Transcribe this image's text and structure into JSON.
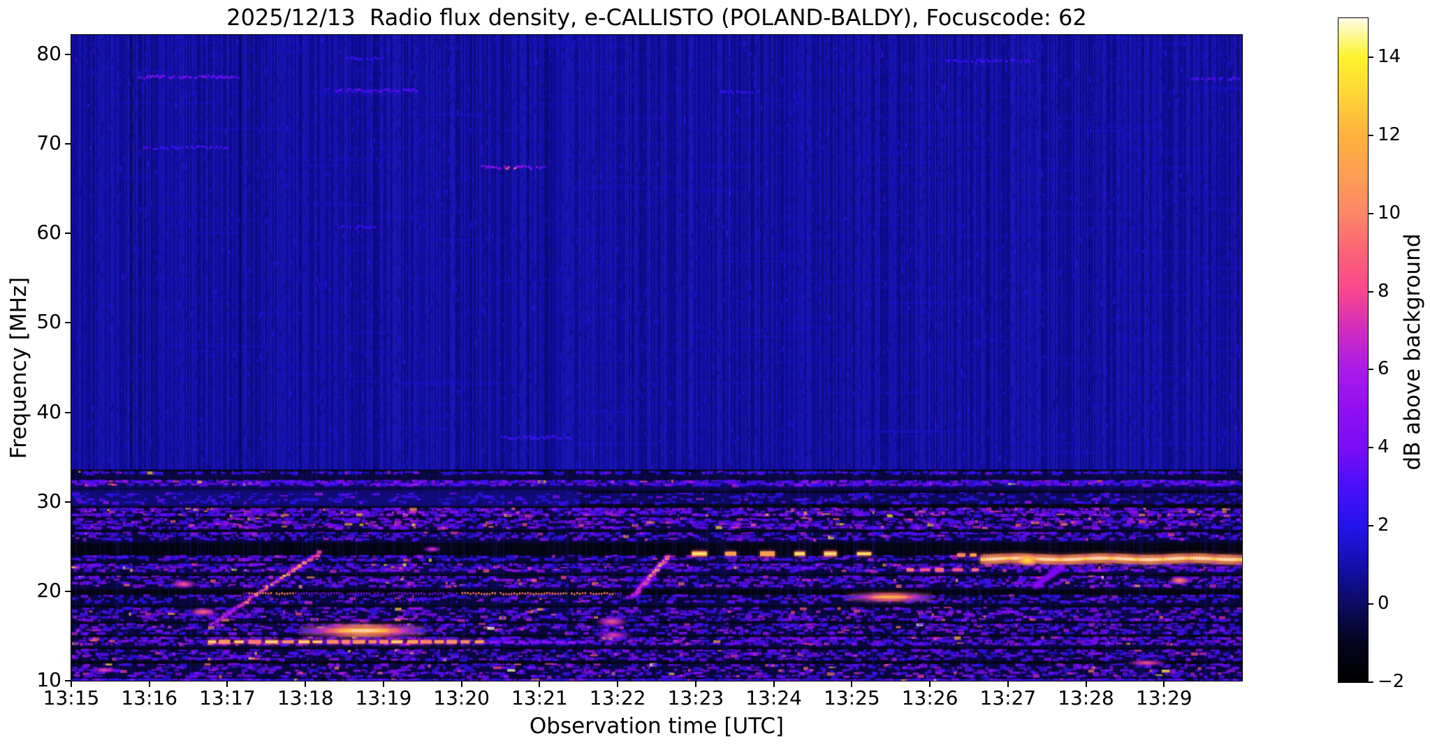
{
  "figure": {
    "background_color": "#ffffff",
    "date": "2025/12/13",
    "station": "POLAND-BALDY",
    "focuscode": "62"
  },
  "chart_data": {
    "type": "heatmap",
    "title": "2025/12/13  Radio flux density, e-CALLISTO (POLAND-BALDY), Focuscode: 62",
    "xlabel": "Observation time [UTC]",
    "ylabel": "Frequency [MHz]",
    "colorbar_label": "dB above background",
    "x_ticks": [
      "13:15",
      "13:16",
      "13:17",
      "13:18",
      "13:19",
      "13:20",
      "13:21",
      "13:22",
      "13:23",
      "13:24",
      "13:25",
      "13:26",
      "13:27",
      "13:28",
      "13:29"
    ],
    "x_range_minutes": [
      0,
      15
    ],
    "y_ticks": [
      80,
      70,
      60,
      50,
      40,
      30,
      20,
      10
    ],
    "y_range": [
      10,
      82.19
    ],
    "colorbar_ticks": [
      14,
      12,
      10,
      8,
      6,
      4,
      2,
      0,
      -2
    ],
    "colorbar_tick_labels": [
      "14",
      "12",
      "10",
      "8",
      "6",
      "4",
      "2",
      "0",
      "−2"
    ],
    "colorbar_range": [
      -2,
      15
    ],
    "grid": false,
    "legend": "colorbar-right",
    "background_value": 0.9,
    "colormap_stops": [
      [
        -2,
        "#000000"
      ],
      [
        -1,
        "#04041e"
      ],
      [
        0,
        "#0c0c63"
      ],
      [
        1,
        "#140fae"
      ],
      [
        2,
        "#2414ec"
      ],
      [
        3,
        "#4a0ffa"
      ],
      [
        4,
        "#7a0df5"
      ],
      [
        5,
        "#920ff2"
      ],
      [
        6,
        "#a81ce8"
      ],
      [
        7,
        "#d02cc0"
      ],
      [
        8,
        "#f9468f"
      ],
      [
        9,
        "#fb6377"
      ],
      [
        10,
        "#fc8767"
      ],
      [
        11,
        "#fe9f53"
      ],
      [
        12,
        "#ffb23f"
      ],
      [
        13,
        "#ffd437"
      ],
      [
        14,
        "#fdf32b"
      ],
      [
        15,
        "#fffde8"
      ]
    ],
    "dark_columns": [
      0.76,
      1.05,
      2.16,
      6.1
    ],
    "haze": [
      {
        "f0": 31.3,
        "f1": 29.5,
        "t0": 0,
        "t1": 6.5,
        "val": 1.6,
        "alpha": 0.45
      },
      {
        "f0": 31.0,
        "f1": 29.8,
        "t0": 6.5,
        "t1": 15,
        "val": 1.4,
        "alpha": 0.25
      },
      {
        "f0": 33.0,
        "f1": 31.2,
        "t0": 0,
        "t1": 15,
        "val": 1.2,
        "alpha": 0.25
      }
    ],
    "bands": [
      {
        "f0": 33.4,
        "f1": 32.9,
        "density": 0.2,
        "val": 1.6,
        "spread": 1.0,
        "spike": 0.003
      },
      {
        "f0": 32.4,
        "f1": 31.5,
        "density": 0.5,
        "val": 2.1,
        "spread": 1.5,
        "spike": 0.01
      },
      {
        "f0": 31.0,
        "f1": 29.7,
        "density": 0.25,
        "val": 1.7,
        "spread": 1.1,
        "spike": 0.003
      },
      {
        "f0": 29.3,
        "f1": 28.3,
        "density": 0.6,
        "val": 2.3,
        "spread": 1.8,
        "spike": 0.028
      },
      {
        "f0": 28.2,
        "f1": 26.8,
        "density": 0.6,
        "val": 2.3,
        "spread": 1.7,
        "spike": 0.02
      },
      {
        "f0": 26.6,
        "f1": 25.4,
        "density": 0.38,
        "val": 2.0,
        "spread": 1.4,
        "spike": 0.008
      },
      {
        "f0": 24.0,
        "f1": 23.2,
        "density": 0.26,
        "val": 1.8,
        "spread": 1.4,
        "spike": 0.01
      },
      {
        "f0": 23.1,
        "f1": 21.9,
        "density": 0.48,
        "val": 2.1,
        "spread": 1.6,
        "spike": 0.014
      },
      {
        "f0": 21.7,
        "f1": 20.2,
        "density": 0.52,
        "val": 2.2,
        "spread": 1.7,
        "spike": 0.018
      },
      {
        "f0": 19.6,
        "f1": 18.4,
        "density": 0.3,
        "val": 1.8,
        "spread": 1.2,
        "spike": 0.006
      },
      {
        "f0": 18.2,
        "f1": 16.6,
        "density": 0.52,
        "val": 2.2,
        "spread": 1.6,
        "spike": 0.018
      },
      {
        "f0": 16.4,
        "f1": 15.1,
        "density": 0.46,
        "val": 2.1,
        "spread": 1.5,
        "spike": 0.012
      },
      {
        "f0": 14.9,
        "f1": 13.7,
        "density": 0.52,
        "val": 2.2,
        "spread": 1.6,
        "spike": 0.018
      },
      {
        "f0": 13.5,
        "f1": 12.2,
        "density": 0.48,
        "val": 2.1,
        "spread": 1.5,
        "spike": 0.015
      },
      {
        "f0": 11.9,
        "f1": 10.3,
        "density": 0.55,
        "val": 2.2,
        "spread": 1.7,
        "spike": 0.022
      },
      {
        "f0": 10.2,
        "f1": 10.0,
        "density": 0.3,
        "val": 1.8,
        "spread": 1.2,
        "spike": 0.005
      }
    ],
    "features": [
      {
        "type": "streak",
        "f": 77.6,
        "t0": 0.85,
        "t1": 2.15,
        "val": 3.2,
        "amp": 1.6
      },
      {
        "type": "streak",
        "f": 76.1,
        "t0": 3.25,
        "t1": 4.45,
        "val": 2.6,
        "amp": 1.0
      },
      {
        "type": "streak",
        "f": 79.7,
        "t0": 3.5,
        "t1": 4.05,
        "val": 2.1,
        "amp": 0.6
      },
      {
        "type": "streak",
        "f": 69.7,
        "t0": 0.9,
        "t1": 2.0,
        "val": 2.5,
        "amp": 0.9
      },
      {
        "type": "streak",
        "f": 67.5,
        "t0": 5.25,
        "t1": 6.05,
        "val": 3.6,
        "amp": 2.0,
        "core": {
          "t": 5.62,
          "val": 7.5
        }
      },
      {
        "type": "streak",
        "f": 60.8,
        "t0": 3.4,
        "t1": 3.95,
        "val": 2.1,
        "amp": 0.5
      },
      {
        "type": "streak",
        "f": 37.3,
        "t0": 5.5,
        "t1": 6.4,
        "val": 2.3,
        "amp": 0.8
      },
      {
        "type": "streak",
        "f": 79.4,
        "t0": 11.2,
        "t1": 12.35,
        "val": 2.3,
        "amp": 0.7
      },
      {
        "type": "streak",
        "f": 77.4,
        "t0": 14.35,
        "t1": 15.0,
        "val": 2.7,
        "amp": 1.0
      },
      {
        "type": "streak",
        "f": 75.9,
        "t0": 8.3,
        "t1": 8.8,
        "val": 2.2,
        "amp": 0.6
      },
      {
        "type": "diag",
        "t0": 1.78,
        "f0": 16.4,
        "t1": 3.16,
        "f1": 24.4,
        "val": 5.5,
        "amp": 6,
        "white": true
      },
      {
        "type": "diag",
        "t0": 7.18,
        "f0": 19.6,
        "t1": 7.62,
        "f1": 24.0,
        "val": 6,
        "amp": 6,
        "white": true
      },
      {
        "type": "diag",
        "t0": 12.32,
        "f0": 20.6,
        "t1": 12.68,
        "f1": 22.9,
        "val": 3.2,
        "amp": 1.6
      },
      {
        "type": "dotline",
        "f": 19.82,
        "t0": 2.2,
        "t1": 7.05,
        "period": 0.035,
        "val": 3.5,
        "hi": 9.5,
        "bright": [
          [
            2.25,
            2.85
          ],
          [
            4.95,
            6.95
          ]
        ]
      },
      {
        "type": "hline",
        "f": 15.6,
        "t0": 2.95,
        "t1": 4.5,
        "val": 14,
        "th": 9,
        "taper": true
      },
      {
        "type": "dashline",
        "f": 14.35,
        "t0": 1.75,
        "t1": 5.35,
        "val": 11,
        "th": 5,
        "dash": [
          0.13,
          0.05
        ],
        "amp": 2.5
      },
      {
        "type": "dashline",
        "f": 14.3,
        "t0": 5.35,
        "t1": 6.6,
        "val": 5,
        "th": 4,
        "dash": [
          0.1,
          0.06
        ],
        "amp": 1.5
      },
      {
        "type": "dashline",
        "f": 24.2,
        "t0": 7.95,
        "t1": 10.25,
        "val": 12,
        "th": 6,
        "dash": [
          0.18,
          0.22
        ],
        "amp": 2
      },
      {
        "type": "dashline",
        "f": 24.05,
        "t0": 11.35,
        "t1": 11.7,
        "val": 11,
        "th": 5,
        "dash": [
          0.1,
          0.08
        ],
        "amp": 2
      },
      {
        "type": "hline",
        "f": 23.62,
        "t0": 11.65,
        "t1": 15.0,
        "val": 14.6,
        "th": 7,
        "knot": 12.25
      },
      {
        "type": "hline",
        "f": 19.35,
        "t0": 9.95,
        "t1": 11.0,
        "val": 11.5,
        "th": 6,
        "taper": true
      },
      {
        "type": "dashline",
        "f": 22.4,
        "t0": 10.7,
        "t1": 11.65,
        "val": 9,
        "th": 5,
        "dash": [
          0.11,
          0.08
        ],
        "amp": 2
      },
      {
        "type": "blob",
        "f": 16.6,
        "t0": 6.7,
        "t1": 7.15,
        "val": 9,
        "th": 8
      },
      {
        "type": "blob",
        "f": 15.1,
        "t0": 6.7,
        "t1": 7.2,
        "val": 8,
        "th": 7
      },
      {
        "type": "blob",
        "f": 17.7,
        "t0": 1.5,
        "t1": 1.87,
        "val": 9.5,
        "th": 7
      },
      {
        "type": "blob",
        "f": 20.8,
        "t0": 1.25,
        "t1": 1.63,
        "val": 9,
        "th": 7
      },
      {
        "type": "blob",
        "f": 24.7,
        "t0": 4.5,
        "t1": 4.75,
        "val": 8,
        "th": 5
      },
      {
        "type": "blob",
        "f": 21.2,
        "t0": 14.05,
        "t1": 14.35,
        "val": 11,
        "th": 6
      },
      {
        "type": "blob",
        "f": 12.0,
        "t0": 13.5,
        "t1": 14.05,
        "val": 9,
        "th": 5
      },
      {
        "type": "blob",
        "f": 11.2,
        "t0": 0.25,
        "t1": 0.6,
        "val": 8.5,
        "th": 5
      }
    ]
  }
}
